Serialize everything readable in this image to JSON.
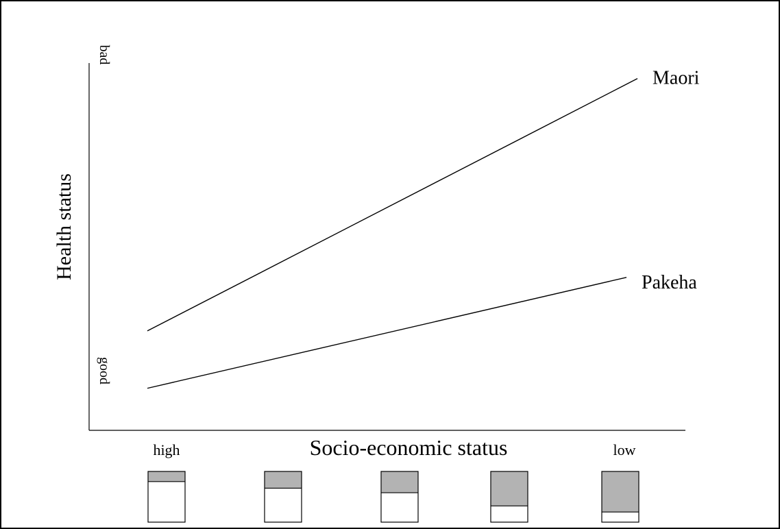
{
  "chart_data": {
    "type": "line",
    "xlabel": "Socio-economic status",
    "ylabel": "Health status",
    "x_tick_labels": {
      "start": "high",
      "end": "low"
    },
    "y_tick_labels": {
      "bottom": "good",
      "top": "bad"
    },
    "series": [
      {
        "name": "Maori",
        "start": 0.26,
        "end": 0.92
      },
      {
        "name": "Pakeha",
        "start": 0.11,
        "end": 0.4
      }
    ],
    "bar_legend": {
      "levels": 5,
      "shaded_fraction": [
        0.2,
        0.33,
        0.42,
        0.68,
        0.8
      ],
      "shade_color": "#b3b3b3"
    },
    "colors": {
      "line": "#000000",
      "background": "#ffffff"
    }
  }
}
